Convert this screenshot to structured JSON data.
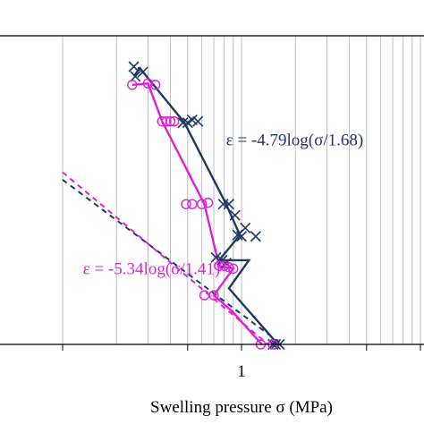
{
  "chart_data": {
    "type": "scatter",
    "title": "",
    "xlabel": "Swelling pressure σ (MPa)",
    "ylabel": "",
    "x_scale": "log",
    "xlim": [
      0.1,
      5
    ],
    "ylim": [
      0,
      11
    ],
    "grid": {
      "x_major_and_minor": true,
      "y": false
    },
    "x_tick_labels": [
      {
        "value": 1,
        "label": "1"
      }
    ],
    "annotations": [
      {
        "text": "ε = -4.79log(σ/1.68)",
        "color": "#1f3864",
        "x": 0.82,
        "y": 7.1
      },
      {
        "text": "ε = -5.34log(σ/1.41)",
        "color": "#e020d8",
        "x": 0.13,
        "y": 2.5
      }
    ],
    "series": [
      {
        "color": "#1f3864",
        "marker": "x",
        "values": [
          {
            "x": 0.25,
            "y": 9.9
          },
          {
            "x": 0.255,
            "y": 9.55
          },
          {
            "x": 0.28,
            "y": 9.7
          },
          {
            "x": 0.47,
            "y": 7.9
          },
          {
            "x": 0.5,
            "y": 7.9
          },
          {
            "x": 0.53,
            "y": 8.0
          },
          {
            "x": 0.57,
            "y": 7.95
          },
          {
            "x": 0.79,
            "y": 5.0
          },
          {
            "x": 0.85,
            "y": 5.0
          },
          {
            "x": 0.92,
            "y": 4.6
          },
          {
            "x": 0.95,
            "y": 3.9
          },
          {
            "x": 1.0,
            "y": 3.85
          },
          {
            "x": 1.05,
            "y": 4.15
          },
          {
            "x": 1.2,
            "y": 3.85
          },
          {
            "x": 0.72,
            "y": 3.1
          },
          {
            "x": 0.78,
            "y": 3.0
          },
          {
            "x": 0.82,
            "y": 2.9
          },
          {
            "x": 1.5,
            "y": 0.0
          },
          {
            "x": 1.55,
            "y": 0.0
          },
          {
            "x": 1.63,
            "y": 0.0
          }
        ]
      },
      {
        "color": "#e020d8",
        "marker": "o",
        "values": [
          {
            "x": 0.245,
            "y": 9.25
          },
          {
            "x": 0.3,
            "y": 9.3
          },
          {
            "x": 0.33,
            "y": 9.25
          },
          {
            "x": 0.36,
            "y": 7.95
          },
          {
            "x": 0.38,
            "y": 7.95
          },
          {
            "x": 0.4,
            "y": 7.95
          },
          {
            "x": 0.42,
            "y": 7.95
          },
          {
            "x": 0.49,
            "y": 5.0
          },
          {
            "x": 0.53,
            "y": 5.0
          },
          {
            "x": 0.6,
            "y": 5.0
          },
          {
            "x": 0.65,
            "y": 5.05
          },
          {
            "x": 0.75,
            "y": 2.8
          },
          {
            "x": 0.8,
            "y": 2.8
          },
          {
            "x": 0.85,
            "y": 2.75
          },
          {
            "x": 0.9,
            "y": 2.7
          },
          {
            "x": 0.62,
            "y": 1.75
          },
          {
            "x": 0.7,
            "y": 1.75
          },
          {
            "x": 1.28,
            "y": 0.0
          },
          {
            "x": 1.5,
            "y": 0.0
          }
        ]
      }
    ],
    "measured_paths": [
      {
        "color": "#1f3864",
        "points": [
          [
            0.25,
            9.55
          ],
          [
            0.27,
            9.85
          ],
          [
            0.48,
            7.9
          ],
          [
            0.82,
            5.0
          ],
          [
            0.98,
            3.9
          ],
          [
            0.75,
            3.0
          ],
          [
            1.1,
            3.0
          ],
          [
            0.85,
            2.0
          ],
          [
            1.6,
            0.0
          ]
        ]
      },
      {
        "color": "#e020d8",
        "points": [
          [
            0.245,
            9.25
          ],
          [
            0.3,
            9.3
          ],
          [
            0.36,
            7.95
          ],
          [
            0.62,
            5.0
          ],
          [
            0.75,
            2.8
          ],
          [
            0.9,
            2.7
          ],
          [
            0.7,
            1.75
          ],
          [
            0.88,
            1.2
          ],
          [
            1.3,
            0.0
          ]
        ]
      }
    ],
    "fit_lines": [
      {
        "color": "#1f3864",
        "style": "dashed",
        "a": -4.79,
        "b": 1.68
      },
      {
        "color": "#e020d8",
        "style": "dashed",
        "a": -5.34,
        "b": 1.41
      }
    ]
  }
}
